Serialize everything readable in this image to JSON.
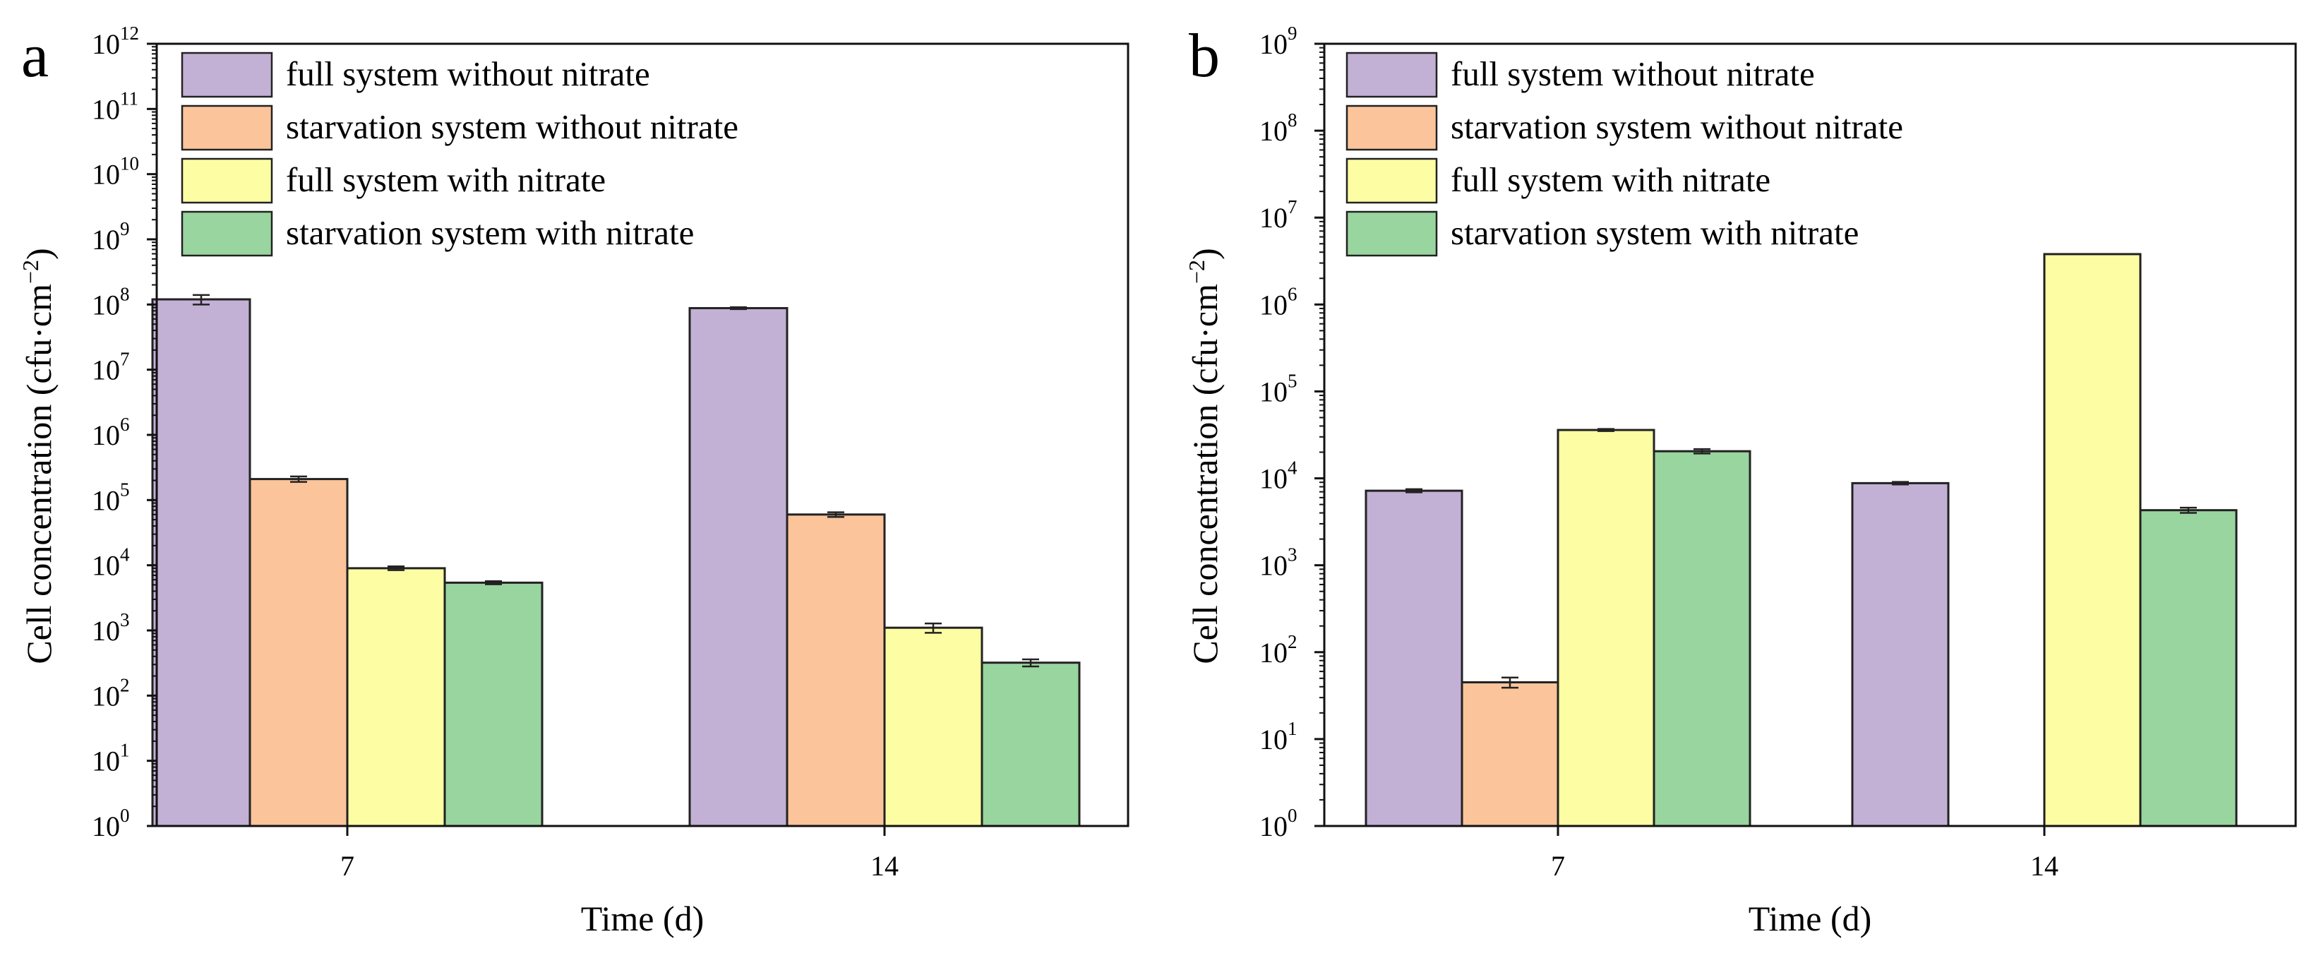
{
  "chart_data": [
    {
      "panel": "a",
      "type": "bar",
      "scale": "log",
      "categories": [
        "7",
        "14"
      ],
      "xlabel": "Time (d)",
      "ylabel": "Cell concentration (cfu·cm",
      "ylabel_exp": "−2",
      "ylabel_close": ")",
      "ylim_exp": [
        0,
        12
      ],
      "ytick_base": "10",
      "ytick_exps": [
        "0",
        "1",
        "2",
        "3",
        "4",
        "5",
        "6",
        "7",
        "8",
        "9",
        "10",
        "11",
        "12"
      ],
      "legend_position": "top-left",
      "series": [
        {
          "name": "full system without nitrate",
          "color": "#c2b0d5",
          "values": [
            120000000,
            88000000
          ],
          "errors": [
            20000000,
            3000000
          ]
        },
        {
          "name": "starvation system without nitrate",
          "color": "#fbc49a",
          "values": [
            210000,
            60000
          ],
          "errors": [
            20000,
            5000
          ]
        },
        {
          "name": "full system with nitrate",
          "color": "#fdfda4",
          "values": [
            9000,
            1100
          ],
          "errors": [
            600,
            180
          ]
        },
        {
          "name": "starvation system with nitrate",
          "color": "#99d59e",
          "values": [
            5400,
            320
          ],
          "errors": [
            300,
            40
          ]
        }
      ]
    },
    {
      "panel": "b",
      "type": "bar",
      "scale": "log",
      "categories": [
        "7",
        "14"
      ],
      "xlabel": "Time (d)",
      "ylabel": "Cell concentration (cfu·cm",
      "ylabel_exp": "−2",
      "ylabel_close": ")",
      "ylim_exp": [
        0,
        9
      ],
      "ytick_base": "10",
      "ytick_exps": [
        "0",
        "1",
        "2",
        "3",
        "4",
        "5",
        "6",
        "7",
        "8",
        "9"
      ],
      "legend_position": "top-left",
      "series": [
        {
          "name": "full system without nitrate",
          "color": "#c2b0d5",
          "values": [
            7200,
            8800
          ],
          "errors": [
            300,
            300
          ]
        },
        {
          "name": "starvation system without nitrate",
          "color": "#fbc49a",
          "values": [
            45,
            null
          ],
          "errors": [
            6,
            null
          ]
        },
        {
          "name": "full system with nitrate",
          "color": "#fdfda4",
          "values": [
            36000,
            3800000
          ],
          "errors": [
            1000,
            0
          ]
        },
        {
          "name": "starvation system with nitrate",
          "color": "#99d59e",
          "values": [
            20500,
            4300
          ],
          "errors": [
            1200,
            300
          ]
        }
      ]
    }
  ]
}
